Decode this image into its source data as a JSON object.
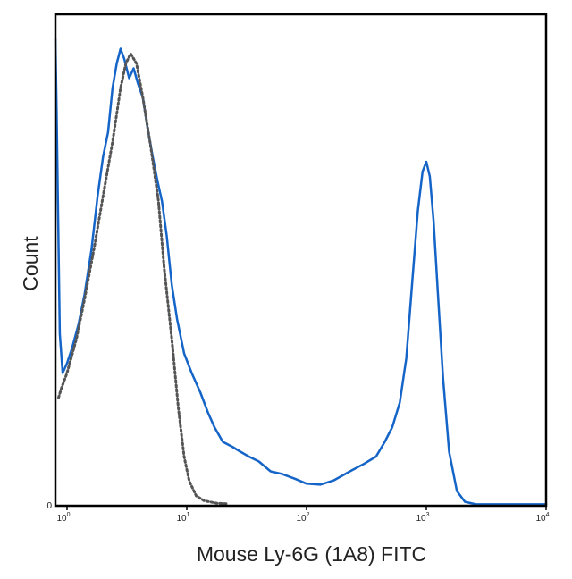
{
  "chart_data": {
    "type": "line",
    "title": "",
    "xlabel": "Mouse Ly-6G (1A8) FITC",
    "ylabel": "Count",
    "x_scale": "log",
    "xlim": [
      0.8,
      10000
    ],
    "ylim": [
      0,
      100
    ],
    "x_ticks": [
      {
        "base": "10",
        "exp": "0",
        "value": 1
      },
      {
        "base": "10",
        "exp": "1",
        "value": 10
      },
      {
        "base": "10",
        "exp": "2",
        "value": 100
      },
      {
        "base": "10",
        "exp": "3",
        "value": 1000
      },
      {
        "base": "10",
        "exp": "4",
        "value": 10000
      }
    ],
    "y_ticks": [
      {
        "label": "0",
        "value": 0
      }
    ],
    "grid": false,
    "legend": "none",
    "series": [
      {
        "color": "#1565c8",
        "style": "solid",
        "points": [
          [
            0.8,
            95
          ],
          [
            0.82,
            80
          ],
          [
            0.87,
            35
          ],
          [
            0.92,
            27
          ],
          [
            1.0,
            29
          ],
          [
            1.1,
            32
          ],
          [
            1.25,
            37
          ],
          [
            1.4,
            43
          ],
          [
            1.6,
            52
          ],
          [
            1.8,
            63
          ],
          [
            2.0,
            71
          ],
          [
            2.2,
            76
          ],
          [
            2.4,
            85
          ],
          [
            2.6,
            90
          ],
          [
            2.8,
            93
          ],
          [
            3.0,
            91
          ],
          [
            3.3,
            87
          ],
          [
            3.6,
            89
          ],
          [
            3.9,
            86
          ],
          [
            4.3,
            83
          ],
          [
            4.7,
            77
          ],
          [
            5.2,
            71
          ],
          [
            5.7,
            66
          ],
          [
            6.2,
            62
          ],
          [
            6.8,
            55
          ],
          [
            7.5,
            45
          ],
          [
            8.3,
            38
          ],
          [
            9.5,
            31
          ],
          [
            11,
            27
          ],
          [
            13,
            23
          ],
          [
            15,
            19
          ],
          [
            17,
            16
          ],
          [
            20,
            13
          ],
          [
            24,
            12
          ],
          [
            28,
            11
          ],
          [
            33,
            10
          ],
          [
            40,
            9
          ],
          [
            50,
            7
          ],
          [
            62,
            6.5
          ],
          [
            80,
            5.5
          ],
          [
            100,
            4.5
          ],
          [
            130,
            4.3
          ],
          [
            170,
            5.2
          ],
          [
            230,
            7
          ],
          [
            300,
            8.5
          ],
          [
            380,
            10
          ],
          [
            450,
            13
          ],
          [
            520,
            16
          ],
          [
            600,
            21
          ],
          [
            680,
            30
          ],
          [
            760,
            45
          ],
          [
            850,
            60
          ],
          [
            930,
            68
          ],
          [
            1000,
            70
          ],
          [
            1070,
            67
          ],
          [
            1150,
            58
          ],
          [
            1250,
            43
          ],
          [
            1380,
            26
          ],
          [
            1550,
            11
          ],
          [
            1800,
            3
          ],
          [
            2100,
            0.8
          ],
          [
            2600,
            0.3
          ],
          [
            3500,
            0.3
          ],
          [
            10000,
            0.3
          ]
        ]
      },
      {
        "color": "#555555",
        "style": "dotted",
        "points": [
          [
            0.85,
            22
          ],
          [
            0.9,
            24
          ],
          [
            1.0,
            27
          ],
          [
            1.2,
            34
          ],
          [
            1.4,
            42
          ],
          [
            1.7,
            53
          ],
          [
            2.0,
            63
          ],
          [
            2.4,
            74
          ],
          [
            2.8,
            85
          ],
          [
            3.1,
            90
          ],
          [
            3.4,
            92
          ],
          [
            3.8,
            90
          ],
          [
            4.3,
            83
          ],
          [
            5.0,
            73
          ],
          [
            5.8,
            62
          ],
          [
            6.5,
            48
          ],
          [
            7.5,
            34
          ],
          [
            8.5,
            20
          ],
          [
            9.5,
            10
          ],
          [
            10.5,
            5
          ],
          [
            12,
            2
          ],
          [
            14,
            1
          ],
          [
            18,
            0.5
          ],
          [
            22,
            0.4
          ]
        ]
      }
    ]
  }
}
